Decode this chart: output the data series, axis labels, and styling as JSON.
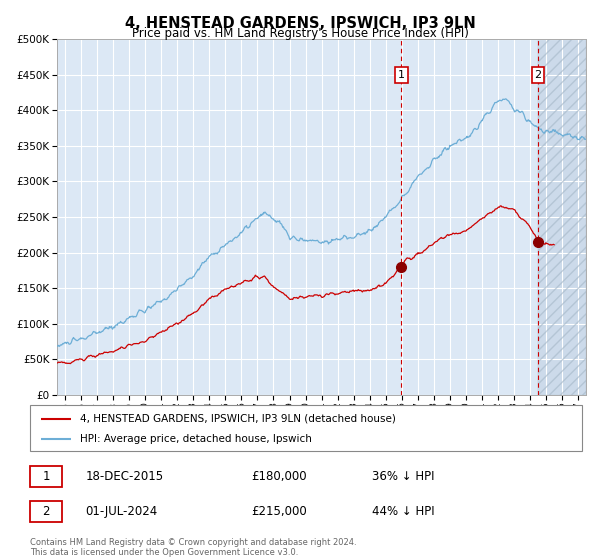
{
  "title": "4, HENSTEAD GARDENS, IPSWICH, IP3 9LN",
  "subtitle": "Price paid vs. HM Land Registry's House Price Index (HPI)",
  "hpi_color": "#6daed6",
  "price_color": "#cc0000",
  "marker1_date_x": 2015.97,
  "marker2_date_x": 2024.5,
  "marker1_price": 180000,
  "marker2_price": 215000,
  "legend_line1": "4, HENSTEAD GARDENS, IPSWICH, IP3 9LN (detached house)",
  "legend_line2": "HPI: Average price, detached house, Ipswich",
  "footer": "Contains HM Land Registry data © Crown copyright and database right 2024.\nThis data is licensed under the Open Government Licence v3.0.",
  "ylim": [
    0,
    500000
  ],
  "xlim_start": 1994.5,
  "xlim_end": 2027.5,
  "background_plot": "#dce8f5",
  "grid_color": "#ffffff",
  "yticks": [
    0,
    50000,
    100000,
    150000,
    200000,
    250000,
    300000,
    350000,
    400000,
    450000,
    500000
  ],
  "ytick_labels": [
    "£0",
    "£50K",
    "£100K",
    "£150K",
    "£200K",
    "£250K",
    "£300K",
    "£350K",
    "£400K",
    "£450K",
    "£500K"
  ],
  "xticks": [
    1995,
    1996,
    1997,
    1998,
    1999,
    2000,
    2001,
    2002,
    2003,
    2004,
    2005,
    2006,
    2007,
    2008,
    2009,
    2010,
    2011,
    2012,
    2013,
    2014,
    2015,
    2016,
    2017,
    2018,
    2019,
    2020,
    2021,
    2022,
    2023,
    2024,
    2025,
    2026,
    2027
  ]
}
